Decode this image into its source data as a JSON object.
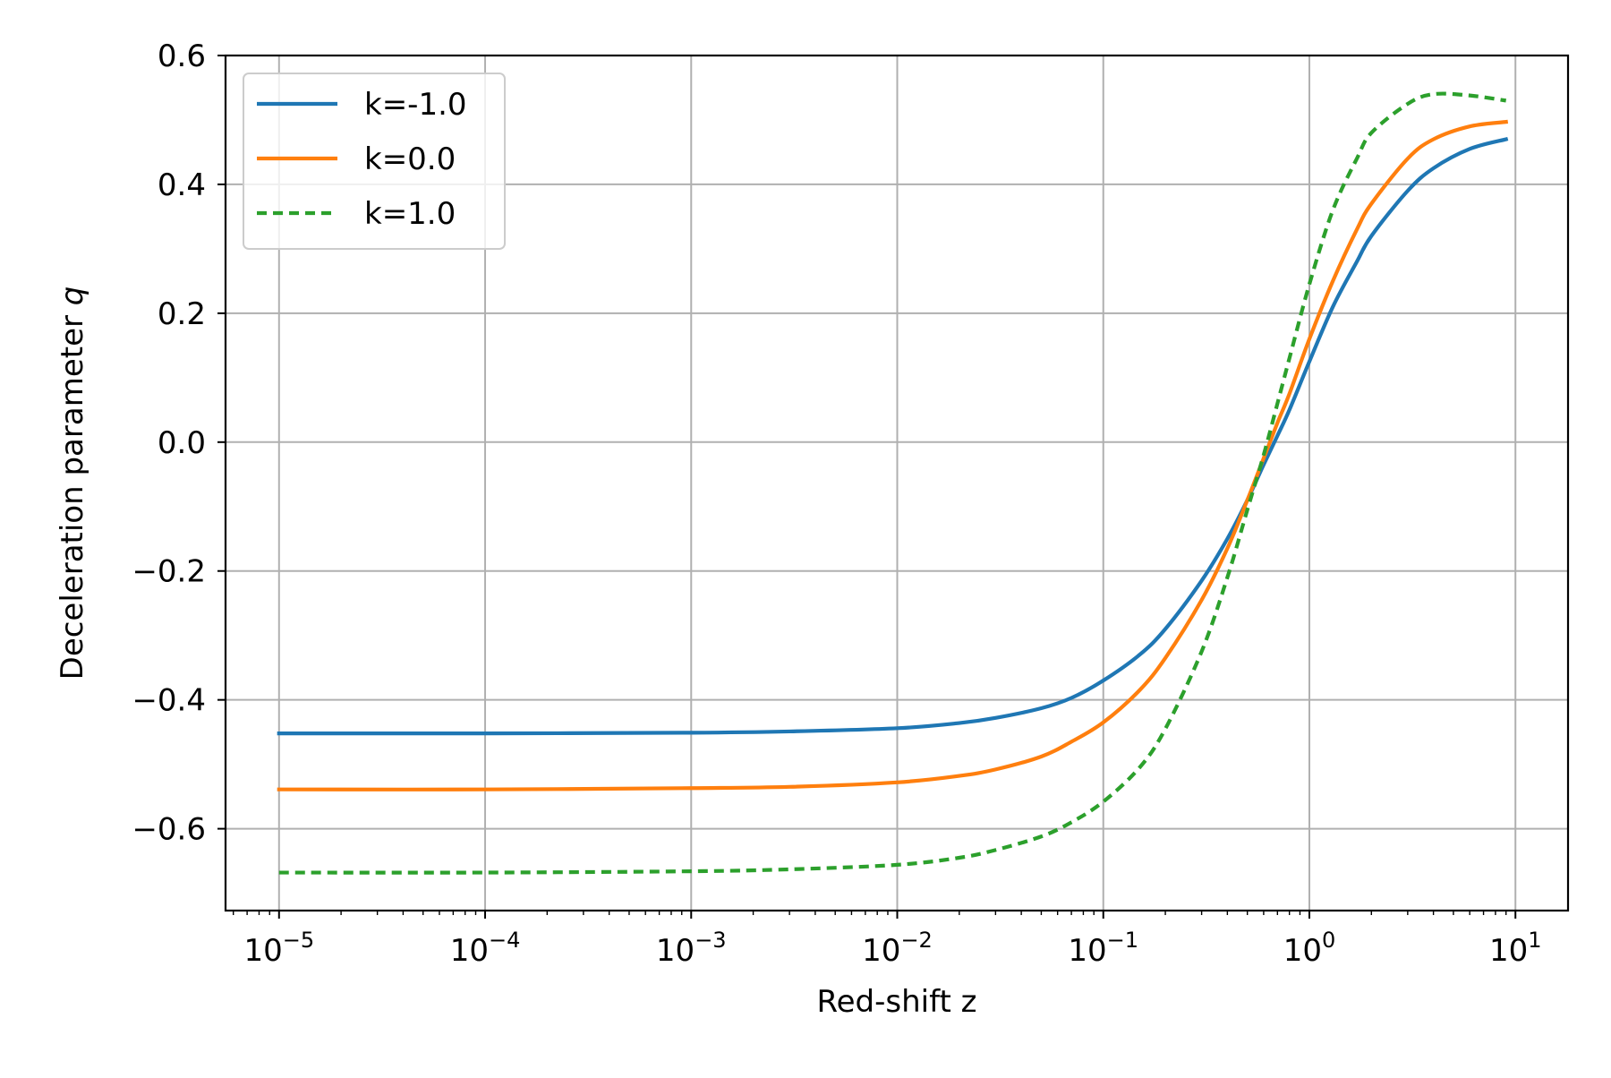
{
  "chart_data": {
    "type": "line",
    "title": "",
    "xlabel": "Red-shift z",
    "ylabel": "Deceleration parameter",
    "ylabel_symbol": "q",
    "xscale": "log",
    "xlim": [
      5.5e-06,
      18
    ],
    "ylim": [
      -0.727,
      0.6
    ],
    "xticks": [
      {
        "value": 1e-05,
        "base": "10",
        "exp": "−5"
      },
      {
        "value": 0.0001,
        "base": "10",
        "exp": "−4"
      },
      {
        "value": 0.001,
        "base": "10",
        "exp": "−3"
      },
      {
        "value": 0.01,
        "base": "10",
        "exp": "−2"
      },
      {
        "value": 0.1,
        "base": "10",
        "exp": "−1"
      },
      {
        "value": 1,
        "base": "10",
        "exp": "0"
      },
      {
        "value": 10,
        "base": "10",
        "exp": "1"
      }
    ],
    "yticks": [
      {
        "value": 0.6,
        "label": "0.6"
      },
      {
        "value": 0.4,
        "label": "0.4"
      },
      {
        "value": 0.2,
        "label": "0.2"
      },
      {
        "value": 0.0,
        "label": "0.0"
      },
      {
        "value": -0.2,
        "label": "−0.2"
      },
      {
        "value": -0.4,
        "label": "−0.4"
      },
      {
        "value": -0.6,
        "label": "−0.6"
      }
    ],
    "grid": true,
    "legend_position": "top-left",
    "series": [
      {
        "name": "k=-1.0",
        "color": "#1f77b4",
        "style": "solid",
        "points": [
          [
            1e-05,
            -0.452
          ],
          [
            0.0001,
            -0.452
          ],
          [
            0.001,
            -0.451
          ],
          [
            0.003,
            -0.449
          ],
          [
            0.01,
            -0.444
          ],
          [
            0.02,
            -0.436
          ],
          [
            0.03,
            -0.428
          ],
          [
            0.05,
            -0.413
          ],
          [
            0.07,
            -0.397
          ],
          [
            0.1,
            -0.37
          ],
          [
            0.15,
            -0.33
          ],
          [
            0.2,
            -0.29
          ],
          [
            0.3,
            -0.215
          ],
          [
            0.4,
            -0.15
          ],
          [
            0.5,
            -0.09
          ],
          [
            0.6,
            -0.035
          ],
          [
            0.7,
            0.01
          ],
          [
            0.8,
            0.05
          ],
          [
            1.0,
            0.125
          ],
          [
            1.3,
            0.21
          ],
          [
            1.7,
            0.28
          ],
          [
            2.0,
            0.32
          ],
          [
            3.0,
            0.39
          ],
          [
            4.0,
            0.425
          ],
          [
            6.0,
            0.455
          ],
          [
            9.0,
            0.47
          ]
        ]
      },
      {
        "name": "k=0.0",
        "color": "#ff7f0e",
        "style": "solid",
        "points": [
          [
            1e-05,
            -0.539
          ],
          [
            0.0001,
            -0.539
          ],
          [
            0.001,
            -0.537
          ],
          [
            0.003,
            -0.535
          ],
          [
            0.01,
            -0.528
          ],
          [
            0.02,
            -0.518
          ],
          [
            0.03,
            -0.508
          ],
          [
            0.05,
            -0.488
          ],
          [
            0.07,
            -0.465
          ],
          [
            0.1,
            -0.435
          ],
          [
            0.15,
            -0.385
          ],
          [
            0.2,
            -0.335
          ],
          [
            0.3,
            -0.245
          ],
          [
            0.4,
            -0.165
          ],
          [
            0.5,
            -0.09
          ],
          [
            0.6,
            -0.025
          ],
          [
            0.7,
            0.03
          ],
          [
            0.8,
            0.075
          ],
          [
            1.0,
            0.16
          ],
          [
            1.3,
            0.25
          ],
          [
            1.7,
            0.33
          ],
          [
            2.0,
            0.37
          ],
          [
            3.0,
            0.44
          ],
          [
            4.0,
            0.47
          ],
          [
            6.0,
            0.49
          ],
          [
            9.0,
            0.497
          ]
        ]
      },
      {
        "name": "k=1.0",
        "color": "#2ca02c",
        "style": "dashed",
        "points": [
          [
            1e-05,
            -0.668
          ],
          [
            0.0001,
            -0.668
          ],
          [
            0.001,
            -0.666
          ],
          [
            0.003,
            -0.663
          ],
          [
            0.01,
            -0.656
          ],
          [
            0.02,
            -0.645
          ],
          [
            0.03,
            -0.633
          ],
          [
            0.05,
            -0.612
          ],
          [
            0.07,
            -0.59
          ],
          [
            0.1,
            -0.558
          ],
          [
            0.15,
            -0.505
          ],
          [
            0.2,
            -0.445
          ],
          [
            0.3,
            -0.325
          ],
          [
            0.4,
            -0.21
          ],
          [
            0.5,
            -0.105
          ],
          [
            0.6,
            -0.02
          ],
          [
            0.7,
            0.06
          ],
          [
            0.8,
            0.13
          ],
          [
            1.0,
            0.245
          ],
          [
            1.3,
            0.36
          ],
          [
            1.7,
            0.44
          ],
          [
            2.0,
            0.48
          ],
          [
            3.0,
            0.525
          ],
          [
            4.0,
            0.54
          ],
          [
            6.0,
            0.538
          ],
          [
            9.0,
            0.53
          ]
        ]
      }
    ]
  }
}
